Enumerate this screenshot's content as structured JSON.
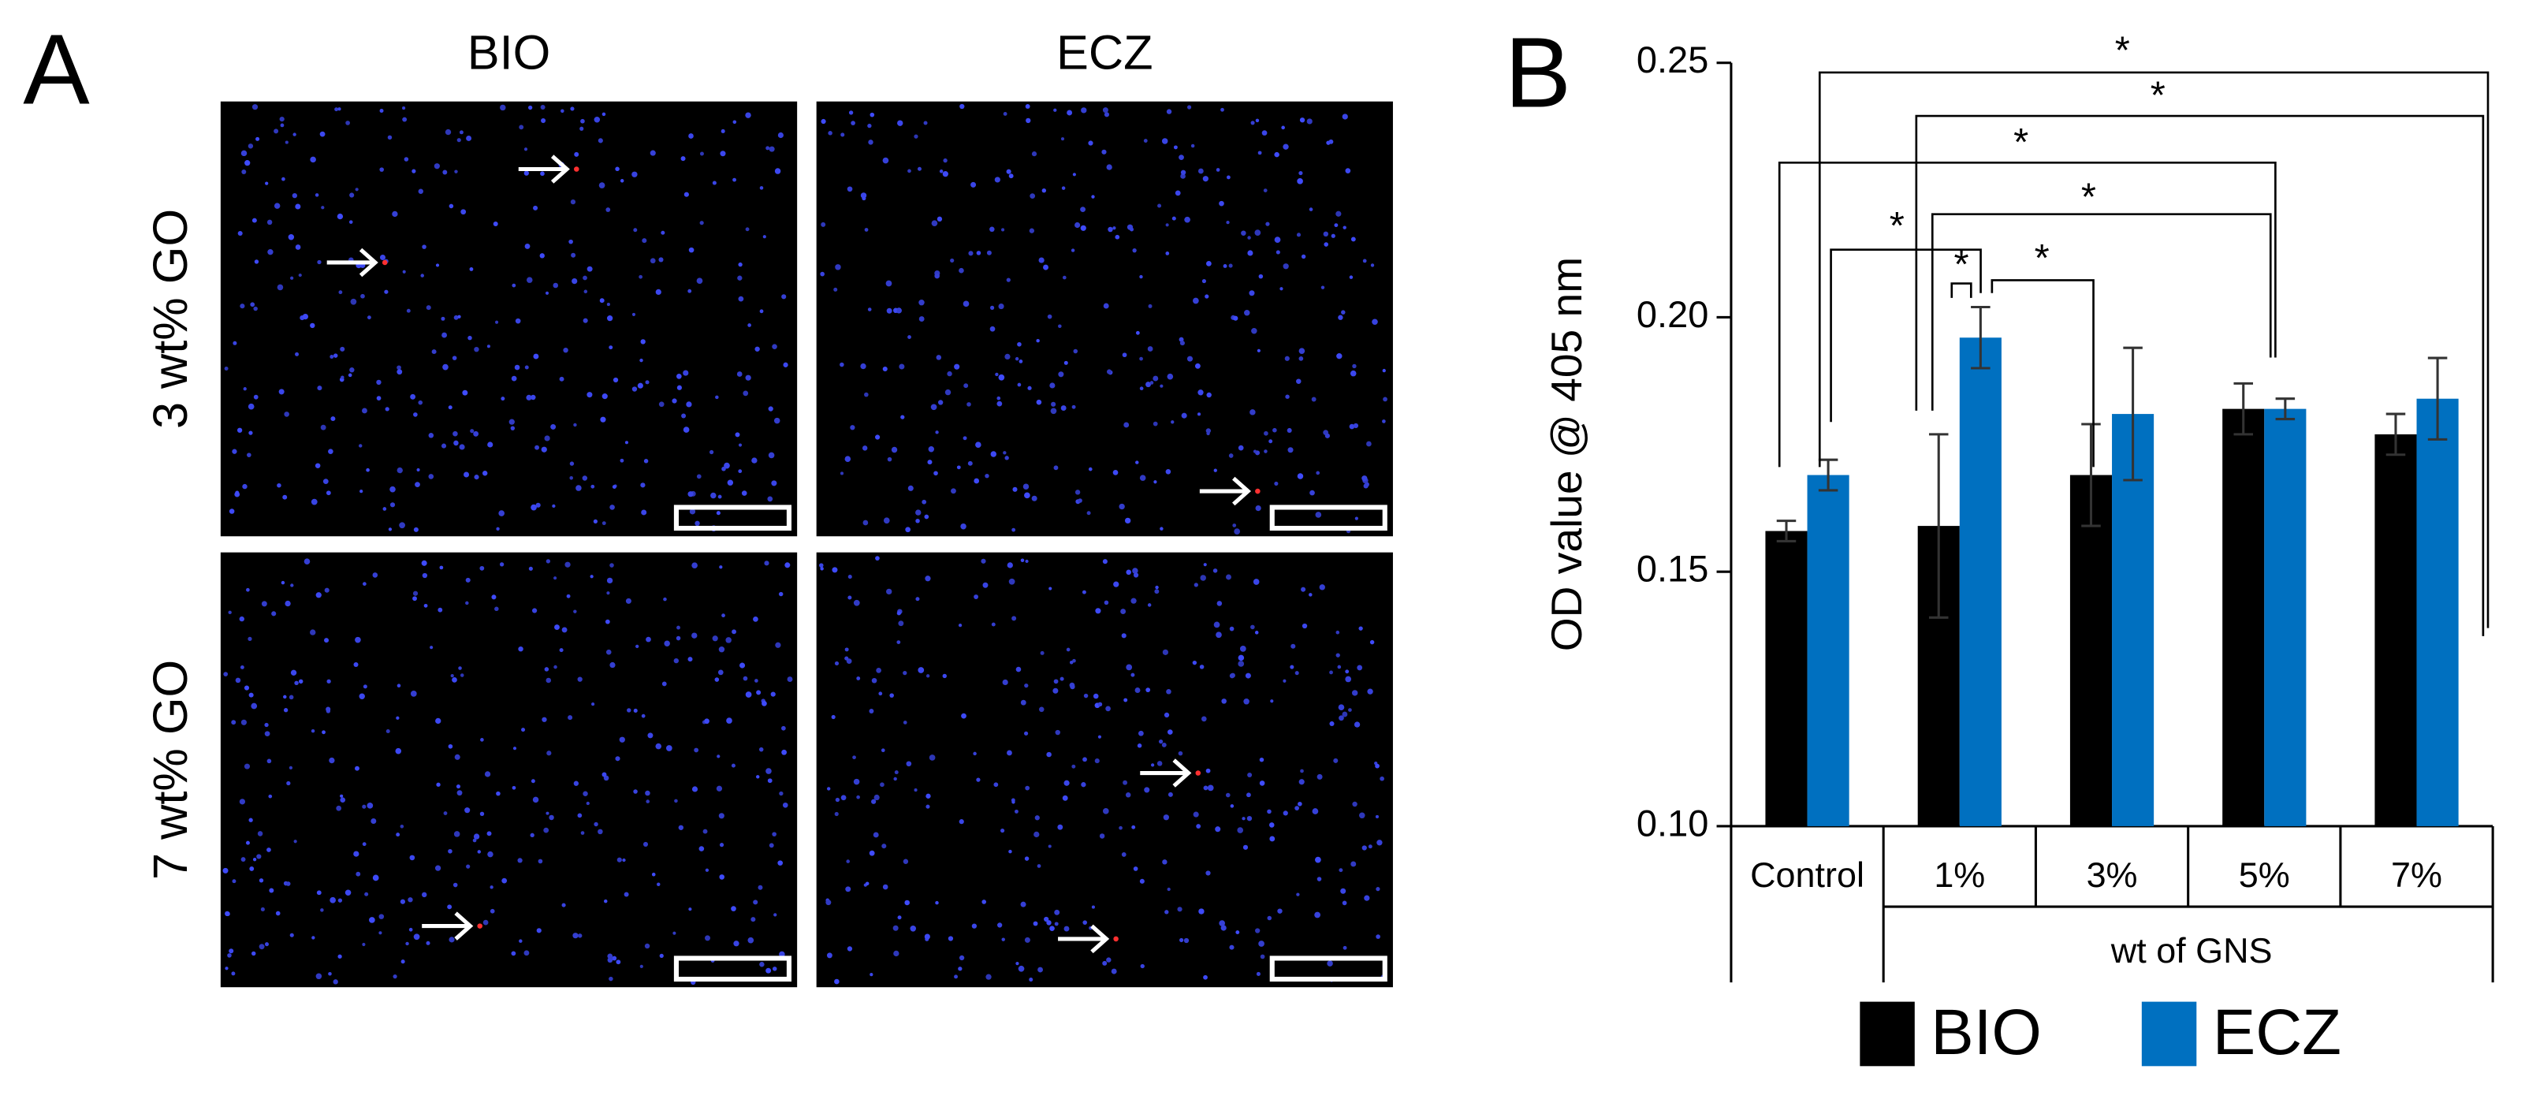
{
  "panel_a": {
    "label": "A",
    "columns": [
      "BIO",
      "ECZ"
    ],
    "rows": [
      "3 wt% GO",
      "7 wt% GO"
    ]
  },
  "chart_data": {
    "type": "bar",
    "label": "B",
    "y_label": "OD value @ 405 nm",
    "x_label": "wt of GNS",
    "categories": [
      "Control",
      "1%",
      "3%",
      "5%",
      "7%"
    ],
    "series": [
      {
        "name": "BIO",
        "color": "#000000",
        "values": [
          0.158,
          0.159,
          0.169,
          0.182,
          0.177
        ],
        "errors": [
          0.002,
          0.018,
          0.01,
          0.005,
          0.004
        ]
      },
      {
        "name": "ECZ",
        "color": "#0070c0",
        "values": [
          0.169,
          0.196,
          0.181,
          0.182,
          0.184
        ],
        "errors": [
          0.003,
          0.006,
          0.013,
          0.002,
          0.008
        ]
      }
    ],
    "ylim": [
      0.1,
      0.25
    ],
    "yticks": [
      {
        "value": 0.1,
        "label": "0.10"
      },
      0.15,
      {
        "value": 0.2,
        "label": "0.20"
      },
      0.25
    ],
    "annotations": [
      "*",
      "*",
      "*",
      "*",
      "*",
      "*",
      "*"
    ]
  }
}
